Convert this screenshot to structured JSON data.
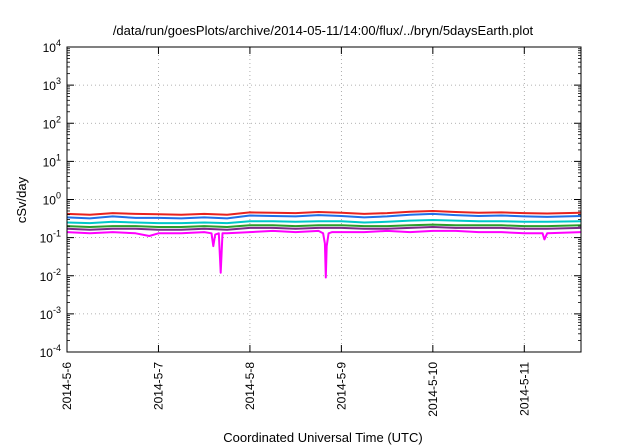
{
  "chart_data": {
    "type": "line",
    "title": "/data/run/goesPlots/archive/2014-05-11/14:00/flux/../bryn/5daysEarth.plot",
    "xlabel": "Coordinated Universal Time (UTC)",
    "ylabel": "cSv/day",
    "yscale": "log",
    "ylim": [
      0.0001,
      10000
    ],
    "xlim": [
      0,
      5.62
    ],
    "grid": true,
    "x_ticks": [
      {
        "value": 0,
        "label": "2014-5-6"
      },
      {
        "value": 1,
        "label": "2014-5-7"
      },
      {
        "value": 2,
        "label": "2014-5-8"
      },
      {
        "value": 3,
        "label": "2014-5-9"
      },
      {
        "value": 4,
        "label": "2014-5-10"
      },
      {
        "value": 5,
        "label": "2014-5-11"
      }
    ],
    "y_ticks": [
      {
        "value": 0.0001,
        "base": "10",
        "exp": "-4"
      },
      {
        "value": 0.001,
        "base": "10",
        "exp": "-3"
      },
      {
        "value": 0.01,
        "base": "10",
        "exp": "-2"
      },
      {
        "value": 0.1,
        "base": "10",
        "exp": "-1"
      },
      {
        "value": 1,
        "base": "10",
        "exp": "0"
      },
      {
        "value": 10,
        "base": "10",
        "exp": "1"
      },
      {
        "value": 100,
        "base": "10",
        "exp": "2"
      },
      {
        "value": 1000,
        "base": "10",
        "exp": "3"
      },
      {
        "value": 10000,
        "base": "10",
        "exp": "4"
      }
    ],
    "series": [
      {
        "color": "#e8231f",
        "x": [
          0,
          0.25,
          0.5,
          0.75,
          1,
          1.25,
          1.5,
          1.75,
          2,
          2.25,
          2.5,
          2.75,
          3,
          3.25,
          3.5,
          3.75,
          4,
          4.25,
          4.5,
          4.75,
          5,
          5.25,
          5.62
        ],
        "values": [
          0.42,
          0.4,
          0.44,
          0.42,
          0.41,
          0.4,
          0.42,
          0.4,
          0.46,
          0.45,
          0.44,
          0.47,
          0.45,
          0.42,
          0.44,
          0.48,
          0.5,
          0.47,
          0.45,
          0.46,
          0.44,
          0.43,
          0.45
        ]
      },
      {
        "color": "#1f6fe8",
        "x": [
          0,
          0.25,
          0.5,
          0.75,
          1,
          1.25,
          1.5,
          1.75,
          2,
          2.25,
          2.5,
          2.75,
          3,
          3.25,
          3.5,
          3.75,
          4,
          4.25,
          4.5,
          4.75,
          5,
          5.25,
          5.62
        ],
        "values": [
          0.34,
          0.32,
          0.36,
          0.33,
          0.33,
          0.32,
          0.34,
          0.32,
          0.38,
          0.37,
          0.36,
          0.39,
          0.37,
          0.34,
          0.36,
          0.4,
          0.42,
          0.39,
          0.37,
          0.38,
          0.36,
          0.35,
          0.37
        ]
      },
      {
        "color": "#00c8c8",
        "x": [
          0,
          0.25,
          0.5,
          0.75,
          1,
          1.25,
          1.5,
          1.75,
          2,
          2.25,
          2.5,
          2.75,
          3,
          3.25,
          3.5,
          3.75,
          4,
          4.25,
          4.5,
          4.75,
          5,
          5.25,
          5.62
        ],
        "values": [
          0.25,
          0.24,
          0.26,
          0.25,
          0.24,
          0.24,
          0.25,
          0.24,
          0.27,
          0.27,
          0.26,
          0.27,
          0.27,
          0.25,
          0.26,
          0.28,
          0.29,
          0.28,
          0.27,
          0.27,
          0.26,
          0.26,
          0.27
        ]
      },
      {
        "color": "#2a9d2a",
        "x": [
          0,
          0.25,
          0.5,
          0.75,
          1,
          1.25,
          1.5,
          1.75,
          2,
          2.25,
          2.5,
          2.75,
          3,
          3.25,
          3.5,
          3.75,
          4,
          4.25,
          4.5,
          4.75,
          5,
          5.25,
          5.62
        ],
        "values": [
          0.2,
          0.19,
          0.2,
          0.2,
          0.19,
          0.19,
          0.2,
          0.19,
          0.21,
          0.21,
          0.2,
          0.21,
          0.21,
          0.2,
          0.2,
          0.21,
          0.22,
          0.21,
          0.21,
          0.21,
          0.2,
          0.2,
          0.21
        ]
      },
      {
        "color": "#7a2a8a",
        "x": [
          0,
          0.25,
          0.5,
          0.75,
          1,
          1.25,
          1.5,
          1.75,
          2,
          2.25,
          2.5,
          2.75,
          3,
          3.25,
          3.5,
          3.75,
          4,
          4.25,
          4.5,
          4.75,
          5,
          5.25,
          5.62
        ],
        "values": [
          0.17,
          0.16,
          0.17,
          0.17,
          0.16,
          0.16,
          0.17,
          0.16,
          0.18,
          0.18,
          0.17,
          0.18,
          0.18,
          0.17,
          0.17,
          0.18,
          0.19,
          0.18,
          0.18,
          0.18,
          0.17,
          0.17,
          0.18
        ]
      },
      {
        "color": "#ff00ff",
        "x": [
          0,
          0.25,
          0.5,
          0.75,
          0.9,
          1,
          1.25,
          1.5,
          1.58,
          1.6,
          1.62,
          1.66,
          1.68,
          1.7,
          1.75,
          2,
          2.25,
          2.5,
          2.75,
          2.8,
          2.82,
          2.83,
          2.84,
          2.86,
          2.9,
          3,
          3.25,
          3.5,
          3.75,
          4,
          4.25,
          4.5,
          4.75,
          5,
          5.2,
          5.22,
          5.25,
          5.62
        ],
        "values": [
          0.14,
          0.13,
          0.14,
          0.13,
          0.11,
          0.13,
          0.13,
          0.14,
          0.13,
          0.06,
          0.12,
          0.13,
          0.012,
          0.13,
          0.13,
          0.14,
          0.15,
          0.14,
          0.15,
          0.13,
          0.07,
          0.009,
          0.06,
          0.13,
          0.14,
          0.14,
          0.14,
          0.15,
          0.14,
          0.15,
          0.15,
          0.14,
          0.14,
          0.13,
          0.13,
          0.09,
          0.13,
          0.14
        ]
      }
    ]
  }
}
